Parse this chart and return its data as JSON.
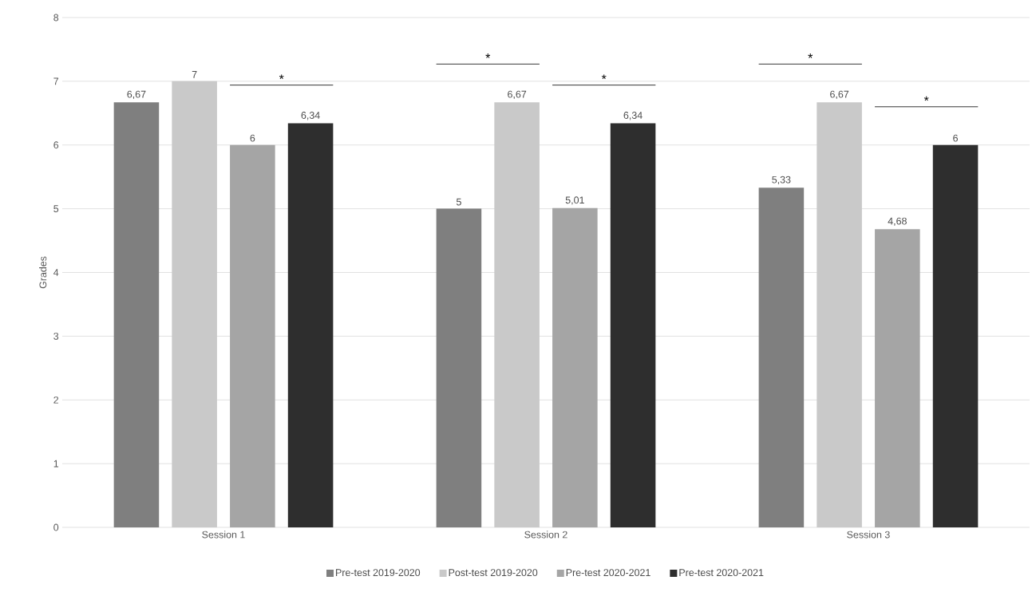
{
  "chart_data": {
    "type": "bar",
    "ylabel": "Grades",
    "categories": [
      "Session 1",
      "Session 2",
      "Session 3"
    ],
    "series": [
      {
        "name": "Pre-test 2019-2020",
        "color": "#7f7f7f",
        "values": [
          6.67,
          5,
          5.33
        ],
        "value_labels": [
          "6,67",
          "5",
          "5,33"
        ]
      },
      {
        "name": "Post-test 2019-2020",
        "color": "#c9c9c9",
        "values": [
          7,
          6.67,
          6.67
        ],
        "value_labels": [
          "7",
          "6,67",
          "6,67"
        ]
      },
      {
        "name": "Pre-test 2020-2021",
        "color": "#a5a5a5",
        "values": [
          6,
          5.01,
          4.68
        ],
        "value_labels": [
          "6",
          "5,01",
          "4,68"
        ]
      },
      {
        "name": "Pre-test 2020-2021",
        "color": "#2e2e2e",
        "values": [
          6.34,
          6.34,
          6
        ],
        "value_labels": [
          "6,34",
          "6,34",
          "6"
        ]
      }
    ],
    "ylim": [
      0,
      8
    ],
    "yticks": [
      0,
      1,
      2,
      3,
      4,
      5,
      6,
      7,
      8
    ],
    "grid": "y",
    "legend": "bottom",
    "annotations": [
      "*",
      "*",
      "*",
      "*",
      "*"
    ]
  }
}
